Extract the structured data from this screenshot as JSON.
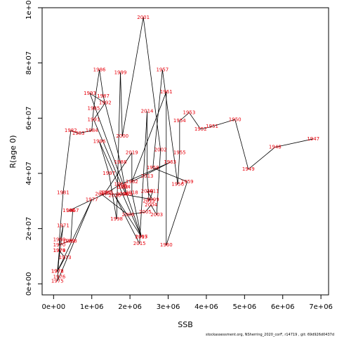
{
  "footer": "stockassessment.org, NSherring_2020_corF, r14719 , git: 69d926d0437d",
  "chart_data": {
    "type": "scatter",
    "xlabel": "SSB",
    "ylabel": "R(age 0)",
    "xlim": [
      -300000,
      7200000
    ],
    "ylim": [
      -4000000,
      100000000
    ],
    "xticks": [
      0,
      1000000,
      2000000,
      3000000,
      4000000,
      5000000,
      6000000,
      7000000
    ],
    "xtick_labels": [
      "0e+00",
      "1e+06",
      "2e+06",
      "3e+06",
      "4e+06",
      "5e+06",
      "6e+06",
      "7e+06"
    ],
    "yticks": [
      0,
      20000000,
      40000000,
      60000000,
      80000000,
      100000000
    ],
    "ytick_labels": [
      "0e+00",
      "2e+07",
      "4e+07",
      "6e+07",
      "8e+07",
      "1e+08"
    ],
    "grid": false,
    "connect_points": true,
    "points": [
      {
        "label": "1947",
        "x": 6800000,
        "y": 52500000
      },
      {
        "label": "1948",
        "x": 5800000,
        "y": 49500000
      },
      {
        "label": "1949",
        "x": 5100000,
        "y": 41500000
      },
      {
        "label": "1950",
        "x": 4750000,
        "y": 59500000
      },
      {
        "label": "1951",
        "x": 4150000,
        "y": 57000000
      },
      {
        "label": "1952",
        "x": 3850000,
        "y": 56000000
      },
      {
        "label": "1953",
        "x": 3550000,
        "y": 62000000
      },
      {
        "label": "1954",
        "x": 3300000,
        "y": 59000000
      },
      {
        "label": "1955",
        "x": 3300000,
        "y": 47500000
      },
      {
        "label": "1956",
        "x": 3250000,
        "y": 36000000
      },
      {
        "label": "1957",
        "x": 2850000,
        "y": 77500000
      },
      {
        "label": "1958",
        "x": 2600000,
        "y": 42000000
      },
      {
        "label": "1959",
        "x": 3500000,
        "y": 37000000
      },
      {
        "label": "1960",
        "x": 2950000,
        "y": 14000000
      },
      {
        "label": "1961",
        "x": 2950000,
        "y": 69500000
      },
      {
        "label": "1962",
        "x": 2050000,
        "y": 37000000
      },
      {
        "label": "1963",
        "x": 3050000,
        "y": 44000000
      },
      {
        "label": "1964",
        "x": 1750000,
        "y": 36000000
      },
      {
        "label": "1965",
        "x": 1400000,
        "y": 33000000
      },
      {
        "label": "1966",
        "x": 400000,
        "y": 26500000
      },
      {
        "label": "1967",
        "x": 500000,
        "y": 26500000
      },
      {
        "label": "1968",
        "x": 450000,
        "y": 15500000
      },
      {
        "label": "1969",
        "x": 400000,
        "y": 15500000
      },
      {
        "label": "1970",
        "x": 150000,
        "y": 14000000
      },
      {
        "label": "1971",
        "x": 250000,
        "y": 21000000
      },
      {
        "label": "1972",
        "x": 100000,
        "y": 4500000
      },
      {
        "label": "1973",
        "x": 300000,
        "y": 9500000
      },
      {
        "label": "1974",
        "x": 150000,
        "y": 12000000
      },
      {
        "label": "1975",
        "x": 100000,
        "y": 1000000
      },
      {
        "label": "1976",
        "x": 150000,
        "y": 2500000
      },
      {
        "label": "1977",
        "x": 1000000,
        "y": 30500000
      },
      {
        "label": "1978",
        "x": 100000,
        "y": 4500000
      },
      {
        "label": "1979",
        "x": 150000,
        "y": 12000000
      },
      {
        "label": "1980",
        "x": 150000,
        "y": 16000000
      },
      {
        "label": "1981",
        "x": 250000,
        "y": 33000000
      },
      {
        "label": "1982",
        "x": 450000,
        "y": 55500000
      },
      {
        "label": "1983",
        "x": 650000,
        "y": 54500000
      },
      {
        "label": "1984",
        "x": 1000000,
        "y": 55500000
      },
      {
        "label": "1985",
        "x": 1050000,
        "y": 63500000
      },
      {
        "label": "1986",
        "x": 1200000,
        "y": 77500000
      },
      {
        "label": "1987",
        "x": 1300000,
        "y": 68000000
      },
      {
        "label": "1988",
        "x": 1750000,
        "y": 44000000
      },
      {
        "label": "1989",
        "x": 1900000,
        "y": 32500000
      },
      {
        "label": "1990",
        "x": 1800000,
        "y": 35000000
      },
      {
        "label": "1991",
        "x": 1050000,
        "y": 59500000
      },
      {
        "label": "1992",
        "x": 1350000,
        "y": 65500000
      },
      {
        "label": "1993",
        "x": 950000,
        "y": 69000000
      },
      {
        "label": "1994",
        "x": 1850000,
        "y": 35000000
      },
      {
        "label": "1995",
        "x": 2300000,
        "y": 17000000
      },
      {
        "label": "1996",
        "x": 1200000,
        "y": 51500000
      },
      {
        "label": "1997",
        "x": 1450000,
        "y": 40000000
      },
      {
        "label": "1998",
        "x": 1650000,
        "y": 23500000
      },
      {
        "label": "1999",
        "x": 1750000,
        "y": 76500000
      },
      {
        "label": "2000",
        "x": 1800000,
        "y": 53500000
      },
      {
        "label": "2001",
        "x": 2350000,
        "y": 96500000
      },
      {
        "label": "2002",
        "x": 2800000,
        "y": 48500000
      },
      {
        "label": "2003",
        "x": 2700000,
        "y": 25000000
      },
      {
        "label": "2004",
        "x": 2550000,
        "y": 28500000
      },
      {
        "label": "2005",
        "x": 2400000,
        "y": 26000000
      },
      {
        "label": "2006",
        "x": 1950000,
        "y": 25000000
      },
      {
        "label": "2007",
        "x": 1250000,
        "y": 32500000
      },
      {
        "label": "2008",
        "x": 1800000,
        "y": 32500000
      },
      {
        "label": "2009",
        "x": 2600000,
        "y": 30500000
      },
      {
        "label": "2010",
        "x": 2450000,
        "y": 33500000
      },
      {
        "label": "2011",
        "x": 2600000,
        "y": 33500000
      },
      {
        "label": "2012",
        "x": 2500000,
        "y": 30000000
      },
      {
        "label": "2013",
        "x": 2450000,
        "y": 39000000
      },
      {
        "label": "2014",
        "x": 2450000,
        "y": 62500000
      },
      {
        "label": "2015",
        "x": 2250000,
        "y": 14500000
      },
      {
        "label": "2016",
        "x": 1600000,
        "y": 32000000
      },
      {
        "label": "2017",
        "x": 2300000,
        "y": 17000000
      },
      {
        "label": "2018",
        "x": 2050000,
        "y": 33000000
      },
      {
        "label": "2019",
        "x": 2050000,
        "y": 47500000
      },
      {
        "label": "2020",
        "x": 1350000,
        "y": 33000000
      }
    ]
  }
}
